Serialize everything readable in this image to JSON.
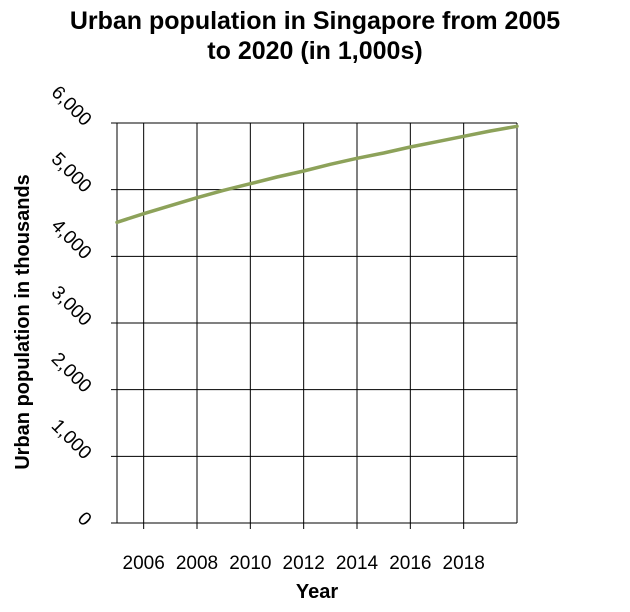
{
  "chart_data": {
    "type": "line",
    "title_lines": [
      "Urban population in Singapore from 2005",
      "to 2020 (in 1,000s)"
    ],
    "xlabel": "Year",
    "ylabel": "Urban population in thousands",
    "xlim": [
      2005,
      2020
    ],
    "ylim": [
      0,
      6000
    ],
    "x_ticks": [
      2006,
      2008,
      2010,
      2012,
      2014,
      2016,
      2018
    ],
    "x_tick_labels": [
      "2006",
      "2008",
      "2010",
      "2012",
      "2014",
      "2016",
      "2018"
    ],
    "y_ticks": [
      0,
      1000,
      2000,
      3000,
      4000,
      5000,
      6000
    ],
    "y_tick_labels": [
      "0",
      "1,000",
      "2,000",
      "3,000",
      "4,000",
      "5,000",
      "6,000"
    ],
    "grid": true,
    "series": [
      {
        "color": "#8da25a",
        "x": [
          2005,
          2006,
          2007,
          2008,
          2009,
          2010,
          2011,
          2012,
          2013,
          2014,
          2015,
          2016,
          2017,
          2018,
          2019,
          2020
        ],
        "values": [
          4510,
          4640,
          4760,
          4880,
          4990,
          5090,
          5190,
          5280,
          5380,
          5470,
          5550,
          5640,
          5720,
          5800,
          5880,
          5950
        ]
      }
    ]
  }
}
